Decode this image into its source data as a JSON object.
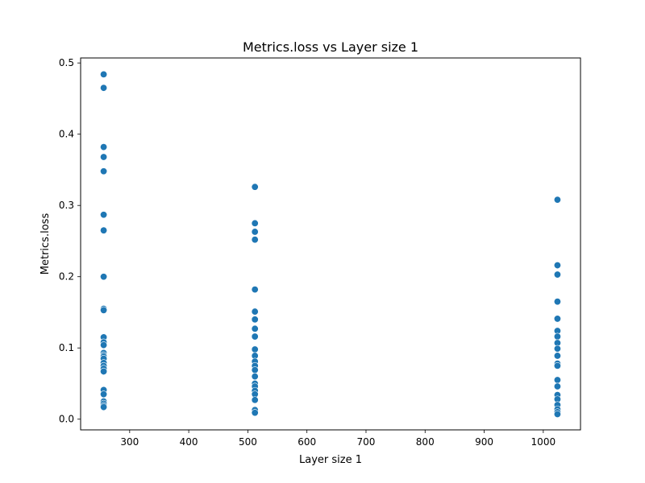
{
  "chart_data": {
    "type": "scatter",
    "title": "Metrics.loss vs Layer size 1",
    "xlabel": "Layer size 1",
    "ylabel": "Metrics.loss",
    "xlim": [
      217,
      1063
    ],
    "ylim": [
      -0.015,
      0.507
    ],
    "xticks": [
      300,
      400,
      500,
      600,
      700,
      800,
      900,
      1000
    ],
    "xtick_labels": [
      "300",
      "400",
      "500",
      "600",
      "700",
      "800",
      "900",
      "1000"
    ],
    "yticks": [
      0.0,
      0.1,
      0.2,
      0.3,
      0.4,
      0.5
    ],
    "ytick_labels": [
      "0.0",
      "0.1",
      "0.2",
      "0.3",
      "0.4",
      "0.5"
    ],
    "grid": false,
    "marker_color": "#1f77b4",
    "series": [
      {
        "points": [
          {
            "x": 256,
            "y": 0.484
          },
          {
            "x": 256,
            "y": 0.465
          },
          {
            "x": 256,
            "y": 0.382
          },
          {
            "x": 256,
            "y": 0.368
          },
          {
            "x": 256,
            "y": 0.348
          },
          {
            "x": 256,
            "y": 0.287
          },
          {
            "x": 256,
            "y": 0.265
          },
          {
            "x": 256,
            "y": 0.2
          },
          {
            "x": 256,
            "y": 0.155
          },
          {
            "x": 256,
            "y": 0.153
          },
          {
            "x": 256,
            "y": 0.115
          },
          {
            "x": 256,
            "y": 0.108
          },
          {
            "x": 256,
            "y": 0.104
          },
          {
            "x": 256,
            "y": 0.093
          },
          {
            "x": 256,
            "y": 0.09
          },
          {
            "x": 256,
            "y": 0.088
          },
          {
            "x": 256,
            "y": 0.085
          },
          {
            "x": 256,
            "y": 0.079
          },
          {
            "x": 256,
            "y": 0.075
          },
          {
            "x": 256,
            "y": 0.071
          },
          {
            "x": 256,
            "y": 0.067
          },
          {
            "x": 256,
            "y": 0.041
          },
          {
            "x": 256,
            "y": 0.035
          },
          {
            "x": 256,
            "y": 0.025
          },
          {
            "x": 256,
            "y": 0.022
          },
          {
            "x": 256,
            "y": 0.019
          },
          {
            "x": 256,
            "y": 0.017
          },
          {
            "x": 512,
            "y": 0.326
          },
          {
            "x": 512,
            "y": 0.275
          },
          {
            "x": 512,
            "y": 0.263
          },
          {
            "x": 512,
            "y": 0.252
          },
          {
            "x": 512,
            "y": 0.182
          },
          {
            "x": 512,
            "y": 0.151
          },
          {
            "x": 512,
            "y": 0.14
          },
          {
            "x": 512,
            "y": 0.127
          },
          {
            "x": 512,
            "y": 0.116
          },
          {
            "x": 512,
            "y": 0.098
          },
          {
            "x": 512,
            "y": 0.089
          },
          {
            "x": 512,
            "y": 0.081
          },
          {
            "x": 512,
            "y": 0.075
          },
          {
            "x": 512,
            "y": 0.069
          },
          {
            "x": 512,
            "y": 0.06
          },
          {
            "x": 512,
            "y": 0.05
          },
          {
            "x": 512,
            "y": 0.046
          },
          {
            "x": 512,
            "y": 0.04
          },
          {
            "x": 512,
            "y": 0.035
          },
          {
            "x": 512,
            "y": 0.027
          },
          {
            "x": 512,
            "y": 0.013
          },
          {
            "x": 512,
            "y": 0.009
          },
          {
            "x": 1024,
            "y": 0.308
          },
          {
            "x": 1024,
            "y": 0.216
          },
          {
            "x": 1024,
            "y": 0.203
          },
          {
            "x": 1024,
            "y": 0.165
          },
          {
            "x": 1024,
            "y": 0.141
          },
          {
            "x": 1024,
            "y": 0.124
          },
          {
            "x": 1024,
            "y": 0.116
          },
          {
            "x": 1024,
            "y": 0.107
          },
          {
            "x": 1024,
            "y": 0.099
          },
          {
            "x": 1024,
            "y": 0.089
          },
          {
            "x": 1024,
            "y": 0.078
          },
          {
            "x": 1024,
            "y": 0.075
          },
          {
            "x": 1024,
            "y": 0.055
          },
          {
            "x": 1024,
            "y": 0.046
          },
          {
            "x": 1024,
            "y": 0.034
          },
          {
            "x": 1024,
            "y": 0.028
          },
          {
            "x": 1024,
            "y": 0.02
          },
          {
            "x": 1024,
            "y": 0.014
          },
          {
            "x": 1024,
            "y": 0.01
          },
          {
            "x": 1024,
            "y": 0.007
          }
        ]
      }
    ]
  }
}
